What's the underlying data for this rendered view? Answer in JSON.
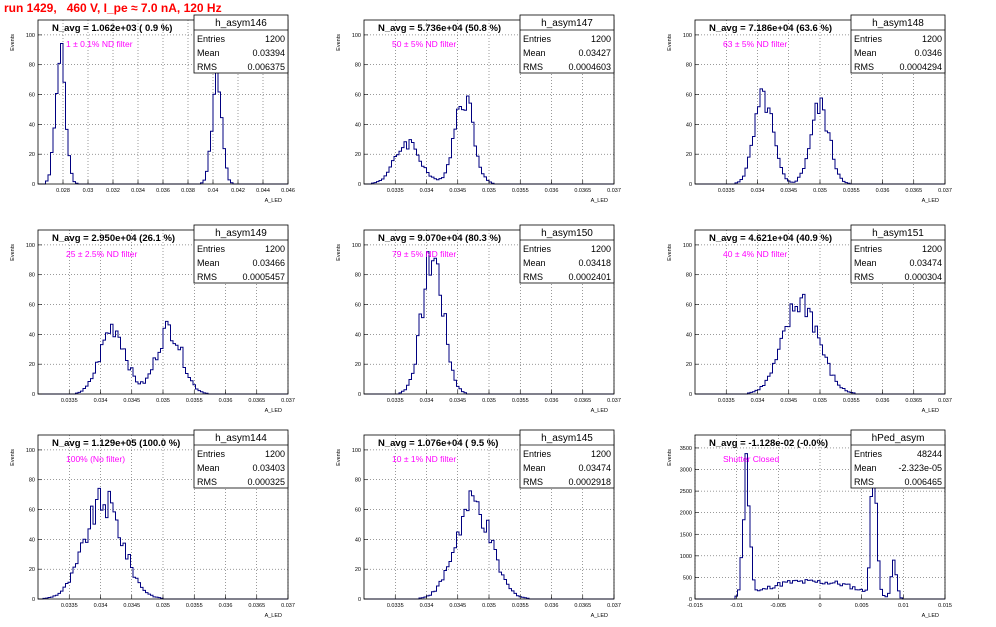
{
  "page": {
    "run_title": "run 1429,   460 V, I_pe ≈ 7.0 nA, 120 Hz"
  },
  "colors": {
    "title": "#ff0000",
    "histogram": "#000080",
    "filter_label": "#ff00ff",
    "grid": "#000000"
  },
  "stat_labels": {
    "entries": "Entries",
    "mean": "Mean",
    "rms": "RMS"
  },
  "chart_data": [
    {
      "type": "bar",
      "title": "h_asym146",
      "xlabel": "A_LED",
      "ylabel": "Events",
      "annotation": "N_avg = 1.062e+03 ( 0.9 %)",
      "filter_label": "1 ± 0.1% ND filter",
      "stats": {
        "entries": "1200",
        "mean": "0.03394",
        "rms": "0.006375"
      },
      "xlim": [
        0.026,
        0.046
      ],
      "ylim": [
        0,
        110
      ],
      "grid": true,
      "xticks": [
        0.028,
        0.03,
        0.032,
        0.034,
        0.036,
        0.038,
        0.04,
        0.042,
        0.044,
        0.046
      ],
      "xticklabels": [
        "0.028",
        "0.03",
        "0.032",
        "0.034",
        "0.036",
        "0.038",
        "0.04",
        "0.042",
        "0.044",
        "0.046"
      ],
      "yticks": [
        0,
        20,
        40,
        60,
        80,
        100
      ],
      "yticklabels": [
        "0",
        "20",
        "40",
        "60",
        "80",
        "100"
      ],
      "peaks": [
        {
          "center": 0.0278,
          "sigma": 0.0004,
          "height": 84
        },
        {
          "center": 0.0403,
          "sigma": 0.0004,
          "height": 70
        }
      ]
    },
    {
      "type": "bar",
      "title": "h_asym147",
      "xlabel": "A_LED",
      "ylabel": "Events",
      "annotation": "N_avg = 5.736e+04 (50.8 %)",
      "filter_label": "50 ± 5% ND filter",
      "stats": {
        "entries": "1200",
        "mean": "0.03427",
        "rms": "0.0004603"
      },
      "xlim": [
        0.033,
        0.037
      ],
      "ylim": [
        0,
        110
      ],
      "grid": true,
      "xticks": [
        0.0335,
        0.034,
        0.0345,
        0.035,
        0.0355,
        0.036,
        0.0365,
        0.037
      ],
      "xticklabels": [
        "0.0335",
        "0.034",
        "0.0345",
        "0.035",
        "0.0355",
        "0.036",
        "0.0365",
        "0.037"
      ],
      "yticks": [
        0,
        20,
        40,
        60,
        80,
        100
      ],
      "yticklabels": [
        "0",
        "20",
        "40",
        "60",
        "80",
        "100"
      ],
      "peaks": [
        {
          "center": 0.0337,
          "sigma": 0.0002,
          "height": 28
        },
        {
          "center": 0.0346,
          "sigma": 0.00015,
          "height": 60
        }
      ]
    },
    {
      "type": "bar",
      "title": "h_asym148",
      "xlabel": "A_LED",
      "ylabel": "Events",
      "annotation": "N_avg = 7.186e+04 (63.6 %)",
      "filter_label": "63 ± 5% ND filter",
      "stats": {
        "entries": "1200",
        "mean": "0.0346",
        "rms": "0.0004294"
      },
      "xlim": [
        0.033,
        0.037
      ],
      "ylim": [
        0,
        110
      ],
      "grid": true,
      "xticks": [
        0.0335,
        0.034,
        0.0345,
        0.035,
        0.0355,
        0.036,
        0.0365,
        0.037
      ],
      "xticklabels": [
        "0.0335",
        "0.034",
        "0.0345",
        "0.035",
        "0.0355",
        "0.036",
        "0.0365",
        "0.037"
      ],
      "yticks": [
        0,
        20,
        40,
        60,
        80,
        100
      ],
      "yticklabels": [
        "0",
        "20",
        "40",
        "60",
        "80",
        "100"
      ],
      "peaks": [
        {
          "center": 0.0341,
          "sigma": 0.00015,
          "height": 57
        },
        {
          "center": 0.035,
          "sigma": 0.00015,
          "height": 52
        }
      ]
    },
    {
      "type": "bar",
      "title": "h_asym149",
      "xlabel": "A_LED",
      "ylabel": "Events",
      "annotation": "N_avg = 2.950e+04 (26.1 %)",
      "filter_label": "25 ± 2.5% ND filter",
      "stats": {
        "entries": "1200",
        "mean": "0.03466",
        "rms": "0.0005457"
      },
      "xlim": [
        0.033,
        0.037
      ],
      "ylim": [
        0,
        110
      ],
      "grid": true,
      "xticks": [
        0.0335,
        0.034,
        0.0345,
        0.035,
        0.0355,
        0.036,
        0.0365,
        0.037
      ],
      "xticklabels": [
        "0.0335",
        "0.034",
        "0.0345",
        "0.035",
        "0.0355",
        "0.036",
        "0.0365",
        "0.037"
      ],
      "yticks": [
        0,
        20,
        40,
        60,
        80,
        100
      ],
      "yticklabels": [
        "0",
        "20",
        "40",
        "60",
        "80",
        "100"
      ],
      "peaks": [
        {
          "center": 0.0342,
          "sigma": 0.0002,
          "height": 45
        },
        {
          "center": 0.0351,
          "sigma": 0.0002,
          "height": 44
        }
      ]
    },
    {
      "type": "bar",
      "title": "h_asym150",
      "xlabel": "A_LED",
      "ylabel": "Events",
      "annotation": "N_avg = 9.070e+04 (80.3 %)",
      "filter_label": "79 ± 5% ND filter",
      "stats": {
        "entries": "1200",
        "mean": "0.03418",
        "rms": "0.0002401"
      },
      "xlim": [
        0.033,
        0.037
      ],
      "ylim": [
        0,
        110
      ],
      "grid": true,
      "xticks": [
        0.0335,
        0.034,
        0.0345,
        0.035,
        0.0355,
        0.036,
        0.0365,
        0.037
      ],
      "xticklabels": [
        "0.0335",
        "0.034",
        "0.0345",
        "0.035",
        "0.0355",
        "0.036",
        "0.0365",
        "0.037"
      ],
      "yticks": [
        0,
        20,
        40,
        60,
        80,
        100
      ],
      "yticklabels": [
        "0",
        "20",
        "40",
        "60",
        "80",
        "100"
      ],
      "peaks": [
        {
          "center": 0.0341,
          "sigma": 0.00017,
          "height": 92
        }
      ]
    },
    {
      "type": "bar",
      "title": "h_asym151",
      "xlabel": "A_LED",
      "ylabel": "Events",
      "annotation": "N_avg = 4.621e+04 (40.9 %)",
      "filter_label": "40 ± 4% ND filter",
      "stats": {
        "entries": "1200",
        "mean": "0.03474",
        "rms": "0.000304"
      },
      "xlim": [
        0.033,
        0.037
      ],
      "ylim": [
        0,
        110
      ],
      "grid": true,
      "xticks": [
        0.0335,
        0.034,
        0.0345,
        0.035,
        0.0355,
        0.036,
        0.0365,
        0.037
      ],
      "xticklabels": [
        "0.0335",
        "0.034",
        "0.0345",
        "0.035",
        "0.0355",
        "0.036",
        "0.0365",
        "0.037"
      ],
      "yticks": [
        0,
        20,
        40,
        60,
        80,
        100
      ],
      "yticklabels": [
        "0",
        "20",
        "40",
        "60",
        "80",
        "100"
      ],
      "peaks": [
        {
          "center": 0.0347,
          "sigma": 0.00028,
          "height": 62
        }
      ]
    },
    {
      "type": "bar",
      "title": "h_asym144",
      "xlabel": "A_LED",
      "ylabel": "Events",
      "annotation": "N_avg = 1.129e+05 (100.0 %)",
      "filter_label": "100% (No filter)",
      "stats": {
        "entries": "1200",
        "mean": "0.03403",
        "rms": "0.000325"
      },
      "xlim": [
        0.033,
        0.037
      ],
      "ylim": [
        0,
        110
      ],
      "grid": true,
      "xticks": [
        0.0335,
        0.034,
        0.0345,
        0.035,
        0.0355,
        0.036,
        0.0365,
        0.037
      ],
      "xticklabels": [
        "0.0335",
        "0.034",
        "0.0345",
        "0.035",
        "0.0355",
        "0.036",
        "0.0365",
        "0.037"
      ],
      "yticks": [
        0,
        20,
        40,
        60,
        80,
        100
      ],
      "yticklabels": [
        "0",
        "20",
        "40",
        "60",
        "80",
        "100"
      ],
      "peaks": [
        {
          "center": 0.03405,
          "sigma": 0.0003,
          "height": 65
        }
      ]
    },
    {
      "type": "bar",
      "title": "h_asym145",
      "xlabel": "A_LED",
      "ylabel": "Events",
      "annotation": "N_avg = 1.076e+04 ( 9.5 %)",
      "filter_label": "10 ± 1% ND filter",
      "stats": {
        "entries": "1200",
        "mean": "0.03474",
        "rms": "0.0002918"
      },
      "xlim": [
        0.033,
        0.037
      ],
      "ylim": [
        0,
        110
      ],
      "grid": true,
      "xticks": [
        0.0335,
        0.034,
        0.0345,
        0.035,
        0.0355,
        0.036,
        0.0365,
        0.037
      ],
      "xticklabels": [
        "0.0335",
        "0.034",
        "0.0345",
        "0.035",
        "0.0355",
        "0.036",
        "0.0365",
        "0.037"
      ],
      "yticks": [
        0,
        20,
        40,
        60,
        80,
        100
      ],
      "yticklabels": [
        "0",
        "20",
        "40",
        "60",
        "80",
        "100"
      ],
      "peaks": [
        {
          "center": 0.03475,
          "sigma": 0.00028,
          "height": 63
        }
      ]
    },
    {
      "type": "bar",
      "title": "hPed_asym",
      "xlabel": "A_LED",
      "ylabel": "Events",
      "annotation": "N_avg = -1.128e-02 (-0.0%)",
      "filter_label": "Shutter Closed",
      "stats": {
        "entries": "48244",
        "mean": "-2.323e-05",
        "rms": "0.006465"
      },
      "xlim": [
        -0.015,
        0.015
      ],
      "ylim": [
        0,
        3800
      ],
      "grid": true,
      "xticks": [
        -0.015,
        -0.01,
        -0.005,
        0,
        0.005,
        0.01,
        0.015
      ],
      "xticklabels": [
        "-0.015",
        "-0.01",
        "-0.005",
        "0",
        "0.005",
        "0.01",
        "0.015"
      ],
      "yticks": [
        0,
        500,
        1000,
        1500,
        2000,
        2500,
        3000,
        3500
      ],
      "yticklabels": [
        "0",
        "500",
        "1000",
        "1500",
        "2000",
        "2500",
        "3000",
        "3500"
      ],
      "range": [
        -0.0103,
        0.0107
      ],
      "peaks": [
        {
          "center": -0.0088,
          "sigma": 0.0004,
          "height": 3000
        },
        {
          "center": 0.0065,
          "sigma": 0.00035,
          "height": 3300
        },
        {
          "center": -0.004,
          "sigma": 0.003,
          "height": 330
        },
        {
          "center": 0.002,
          "sigma": 0.003,
          "height": 320
        },
        {
          "center": 0.0089,
          "sigma": 0.0003,
          "height": 900
        }
      ]
    }
  ]
}
